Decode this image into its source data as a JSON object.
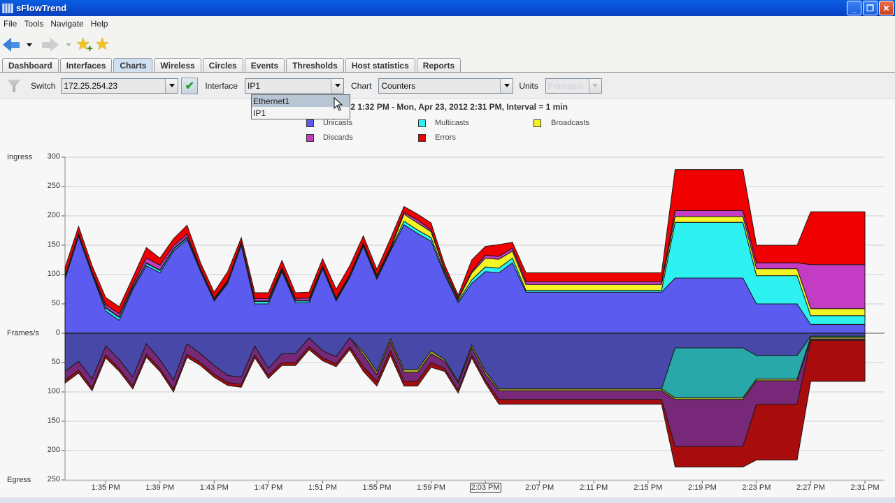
{
  "window": {
    "title": "sFlowTrend",
    "controls": [
      "minimize",
      "restore",
      "close"
    ]
  },
  "menu": [
    "File",
    "Tools",
    "Navigate",
    "Help"
  ],
  "toolbar": {
    "back": "back-arrow",
    "forward": "forward-arrow",
    "add_bookmark": "star-add",
    "edit_bookmark": "star-edit"
  },
  "tabs": [
    {
      "label": "Dashboard",
      "active": false
    },
    {
      "label": "Interfaces",
      "active": false
    },
    {
      "label": "Charts",
      "active": true
    },
    {
      "label": "Wireless",
      "active": false
    },
    {
      "label": "Circles",
      "active": false
    },
    {
      "label": "Events",
      "active": false
    },
    {
      "label": "Thresholds",
      "active": false
    },
    {
      "label": "Host statistics",
      "active": false
    },
    {
      "label": "Reports",
      "active": false
    }
  ],
  "controls": {
    "switch_label": "Switch",
    "switch_value": "172.25.254.23",
    "interface_label": "Interface",
    "interface_value": "IP1",
    "interface_options": [
      "Ethernet1",
      "IP1"
    ],
    "interface_hovered": "Ethernet1",
    "chart_label": "Chart",
    "chart_value": "Counters",
    "units_label": "Units",
    "units_value": "Frames/s"
  },
  "colors": {
    "unicasts": "#5b5bf0",
    "multicasts": "#2ef2f2",
    "broadcasts": "#f4f424",
    "discards": "#c43cc4",
    "errors": "#f00000",
    "egress_unicasts": "#4848a8",
    "egress_multicasts": "#28a8a8",
    "egress_broadcasts": "#a8a828",
    "egress_discards": "#782878",
    "egress_errors": "#a80c0c"
  },
  "chart_data": {
    "type": "area",
    "title": "Mon, Apr 23, 2012 1:32 PM - Mon, Apr 23, 2012 2:31 PM, Interval = 1 min",
    "title_visible": "3, 2012 1:32 PM - Mon, Apr 23, 2012 2:31 PM, Interval = 1 min",
    "stacked": true,
    "mirrored": true,
    "ylabel": "Frames/s",
    "ylabel_top": "Ingress",
    "ylabel_bottom": "Egress",
    "ylim": [
      -250,
      300
    ],
    "yticks": [
      300,
      250,
      200,
      150,
      100,
      50,
      0,
      50,
      100,
      150,
      200,
      250
    ],
    "xticks": [
      "1:35 PM",
      "1:39 PM",
      "1:43 PM",
      "1:47 PM",
      "1:51 PM",
      "1:55 PM",
      "1:59 PM",
      "2:03 PM",
      "2:07 PM",
      "2:11 PM",
      "2:15 PM",
      "2:19 PM",
      "2:23 PM",
      "2:27 PM",
      "2:31 PM"
    ],
    "focused_xtick": "2:03 PM",
    "grid": true,
    "legend": [
      "Unicasts",
      "Multicasts",
      "Broadcasts",
      "Discards",
      "Errors"
    ],
    "legend_position": "top",
    "x": [
      "1:32",
      "1:33",
      "1:34",
      "1:35",
      "1:36",
      "1:37",
      "1:38",
      "1:39",
      "1:40",
      "1:41",
      "1:42",
      "1:43",
      "1:44",
      "1:45",
      "1:46",
      "1:47",
      "1:48",
      "1:49",
      "1:50",
      "1:51",
      "1:52",
      "1:53",
      "1:54",
      "1:55",
      "1:56",
      "1:57",
      "1:58",
      "1:59",
      "2:00",
      "2:01",
      "2:02",
      "2:03",
      "2:04",
      "2:05",
      "2:06",
      "2:07",
      "2:08",
      "2:09",
      "2:10",
      "2:11",
      "2:12",
      "2:13",
      "2:14",
      "2:15",
      "2:16",
      "2:17",
      "2:18",
      "2:19",
      "2:20",
      "2:21",
      "2:22",
      "2:23",
      "2:24",
      "2:25",
      "2:26",
      "2:27",
      "2:28",
      "2:29",
      "2:30",
      "2:31"
    ],
    "ingress": [
      {
        "name": "Unicasts",
        "values": [
          92,
          165,
          100,
          38,
          22,
          75,
          115,
          103,
          140,
          160,
          105,
          55,
          85,
          150,
          50,
          50,
          105,
          52,
          52,
          110,
          55,
          95,
          148,
          92,
          140,
          185,
          170,
          157,
          100,
          52,
          85,
          105,
          103,
          120,
          70,
          70,
          70,
          70,
          70,
          70,
          70,
          70,
          70,
          70,
          70,
          94,
          94,
          94,
          94,
          94,
          94,
          50,
          50,
          50,
          50,
          15,
          15,
          15,
          15,
          15
        ]
      },
      {
        "name": "Multicasts",
        "values": [
          2,
          2,
          2,
          5,
          5,
          3,
          4,
          4,
          3,
          3,
          2,
          2,
          2,
          2,
          4,
          4,
          3,
          3,
          3,
          2,
          2,
          2,
          2,
          2,
          2,
          6,
          6,
          6,
          3,
          3,
          6,
          8,
          8,
          8,
          3,
          3,
          3,
          3,
          3,
          3,
          3,
          3,
          3,
          3,
          3,
          95,
          95,
          95,
          95,
          95,
          95,
          48,
          48,
          48,
          48,
          15,
          15,
          15,
          15,
          15
        ]
      },
      {
        "name": "Broadcasts",
        "values": [
          1,
          1,
          1,
          1,
          1,
          1,
          1,
          1,
          1,
          1,
          1,
          1,
          1,
          1,
          1,
          1,
          1,
          1,
          1,
          1,
          1,
          1,
          2,
          3,
          2,
          12,
          12,
          10,
          4,
          3,
          12,
          15,
          15,
          12,
          10,
          10,
          10,
          10,
          10,
          10,
          10,
          10,
          10,
          10,
          10,
          10,
          10,
          10,
          10,
          10,
          10,
          12,
          12,
          12,
          12,
          12,
          12,
          12,
          12,
          12
        ]
      },
      {
        "name": "Discards",
        "values": [
          2,
          2,
          2,
          5,
          5,
          4,
          8,
          8,
          5,
          5,
          2,
          2,
          2,
          2,
          4,
          4,
          3,
          3,
          4,
          2,
          2,
          2,
          2,
          2,
          2,
          3,
          5,
          3,
          2,
          2,
          2,
          5,
          5,
          5,
          5,
          5,
          5,
          5,
          5,
          5,
          5,
          5,
          5,
          5,
          5,
          10,
          10,
          10,
          10,
          10,
          10,
          10,
          10,
          10,
          10,
          75,
          75,
          75,
          75,
          75
        ]
      },
      {
        "name": "Errors",
        "values": [
          15,
          12,
          10,
          12,
          12,
          12,
          18,
          12,
          12,
          15,
          10,
          10,
          15,
          8,
          10,
          10,
          12,
          10,
          10,
          12,
          15,
          15,
          12,
          10,
          15,
          10,
          10,
          12,
          8,
          5,
          20,
          15,
          20,
          10,
          15,
          15,
          15,
          15,
          15,
          15,
          15,
          15,
          15,
          15,
          15,
          70,
          70,
          70,
          70,
          70,
          70,
          30,
          30,
          30,
          30,
          90,
          90,
          90,
          90,
          90
        ]
      }
    ],
    "egress": [
      {
        "name": "Unicasts",
        "values": [
          65,
          48,
          78,
          22,
          45,
          75,
          18,
          45,
          80,
          18,
          35,
          55,
          72,
          75,
          22,
          60,
          35,
          35,
          8,
          30,
          40,
          8,
          32,
          65,
          10,
          62,
          62,
          30,
          45,
          82,
          20,
          65,
          95,
          95,
          95,
          95,
          95,
          95,
          95,
          95,
          95,
          95,
          95,
          95,
          95,
          25,
          25,
          25,
          25,
          25,
          25,
          38,
          38,
          38,
          38,
          5,
          5,
          5,
          5,
          5
        ]
      },
      {
        "name": "Multicasts",
        "values": [
          0,
          0,
          0,
          0,
          0,
          0,
          0,
          0,
          0,
          0,
          0,
          0,
          0,
          0,
          0,
          0,
          0,
          0,
          0,
          0,
          0,
          0,
          0,
          0,
          0,
          0,
          0,
          0,
          0,
          0,
          0,
          0,
          0,
          0,
          0,
          0,
          0,
          0,
          0,
          0,
          0,
          0,
          0,
          0,
          0,
          85,
          85,
          85,
          85,
          85,
          85,
          40,
          40,
          40,
          40,
          2,
          2,
          2,
          2,
          2
        ]
      },
      {
        "name": "Broadcasts",
        "values": [
          0,
          0,
          0,
          0,
          0,
          0,
          0,
          0,
          0,
          0,
          0,
          0,
          0,
          0,
          0,
          0,
          0,
          0,
          0,
          0,
          0,
          0,
          5,
          5,
          5,
          5,
          5,
          5,
          3,
          3,
          5,
          5,
          3,
          3,
          3,
          3,
          3,
          3,
          3,
          3,
          3,
          3,
          3,
          3,
          3,
          3,
          3,
          3,
          3,
          3,
          3,
          3,
          3,
          3,
          3,
          3,
          3,
          3,
          3,
          3
        ]
      },
      {
        "name": "Discards",
        "values": [
          15,
          15,
          15,
          15,
          15,
          15,
          18,
          15,
          15,
          18,
          15,
          15,
          12,
          12,
          15,
          12,
          15,
          15,
          15,
          12,
          12,
          15,
          20,
          12,
          15,
          15,
          15,
          15,
          12,
          12,
          12,
          10,
          15,
          15,
          15,
          15,
          15,
          15,
          15,
          15,
          15,
          15,
          15,
          15,
          15,
          80,
          80,
          80,
          80,
          80,
          80,
          40,
          40,
          40,
          40,
          2,
          2,
          2,
          2,
          2
        ]
      },
      {
        "name": "Errors",
        "values": [
          5,
          5,
          5,
          5,
          5,
          5,
          5,
          5,
          5,
          5,
          5,
          5,
          5,
          5,
          5,
          5,
          5,
          5,
          5,
          5,
          5,
          5,
          8,
          8,
          8,
          8,
          8,
          8,
          5,
          5,
          5,
          5,
          8,
          8,
          8,
          8,
          8,
          8,
          8,
          8,
          8,
          8,
          8,
          8,
          8,
          35,
          35,
          35,
          35,
          35,
          35,
          95,
          95,
          95,
          95,
          70,
          70,
          70,
          70,
          70
        ]
      }
    ]
  },
  "axis_labels": {
    "ingress": "Ingress",
    "frames": "Frames/s",
    "egress": "Egress"
  }
}
